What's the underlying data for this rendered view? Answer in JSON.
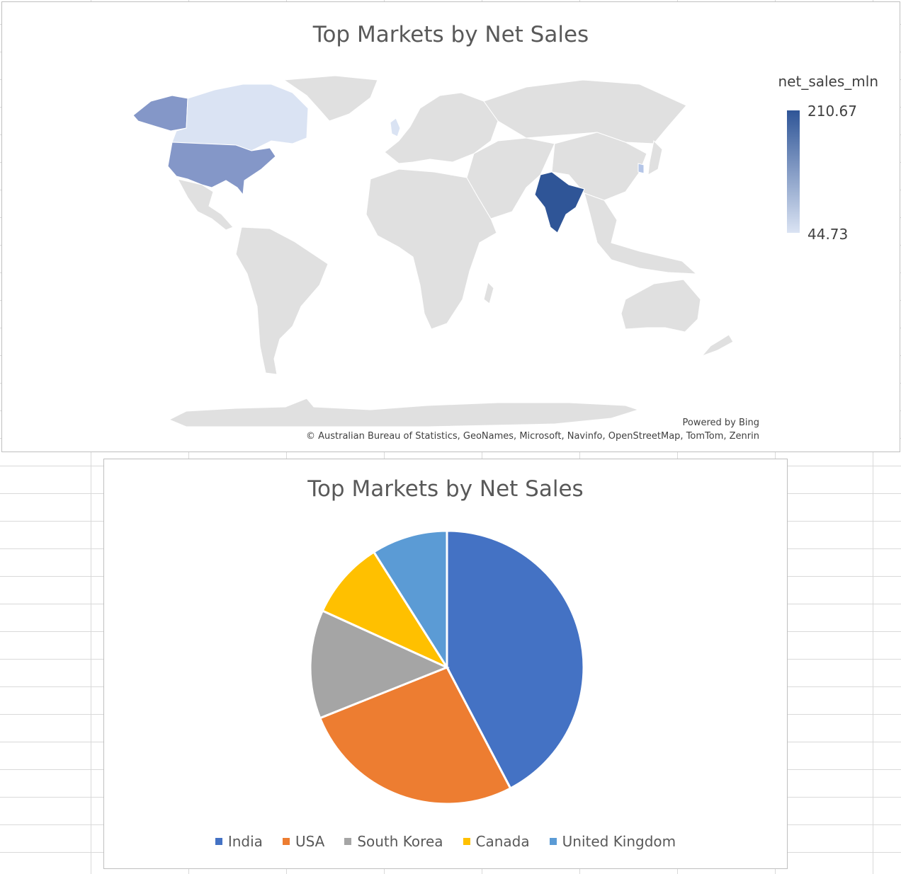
{
  "map_chart": {
    "title": "Top Markets by Net Sales",
    "legend_title": "net_sales_mln",
    "legend_max": "210.67",
    "legend_min": "44.73",
    "color_high": "#2f5597",
    "color_low": "#dae3f3",
    "attribution_powered": "Powered by Bing",
    "attribution_credits": "© Australian Bureau of Statistics, GeoNames, Microsoft, Navinfo, OpenStreetMap, TomTom, Zenrin"
  },
  "chart_data": [
    {
      "type": "map",
      "title": "Top Markets by Net Sales",
      "legend_title": "net_sales_mln",
      "color_scale": {
        "min": 44.73,
        "max": 210.67
      },
      "regions": [
        {
          "name": "India",
          "level": "highest"
        },
        {
          "name": "USA",
          "level": "medium"
        },
        {
          "name": "Canada",
          "level": "low"
        },
        {
          "name": "United Kingdom",
          "level": "low"
        },
        {
          "name": "South Korea",
          "level": "low-medium"
        }
      ]
    },
    {
      "type": "pie",
      "title": "Top Markets by Net Sales",
      "categories": [
        "India",
        "USA",
        "South Korea",
        "Canada",
        "United Kingdom"
      ],
      "values": [
        210.67,
        132.62,
        64.01,
        45.89,
        44.73
      ],
      "colors": [
        "#4472c4",
        "#ed7d31",
        "#a5a5a5",
        "#ffc000",
        "#5b9bd5"
      ],
      "legend_position": "bottom"
    }
  ]
}
